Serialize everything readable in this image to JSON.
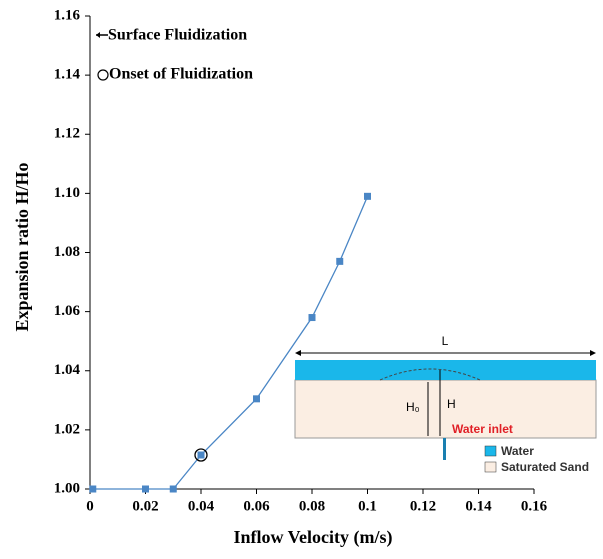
{
  "chart_data": {
    "type": "line",
    "x_label": "Inflow Velocity (m/s)",
    "y_label": "Expansion ratio H/Ho",
    "legend": [
      "Surface Fluidization",
      "Onset of Fluidization"
    ],
    "series": [
      {
        "x": [
          0.001,
          0.02,
          0.03,
          0.04,
          0.06,
          0.08,
          0.09,
          0.1
        ],
        "values": [
          1.0,
          1.0,
          1.0,
          1.0115,
          1.0305,
          1.058,
          1.077,
          1.099
        ],
        "color": "#4a86c5"
      }
    ],
    "onset_index": 3,
    "xlim": [
      0,
      0.16
    ],
    "xticks": [
      0,
      0.02,
      0.04,
      0.06,
      0.08,
      0.1,
      0.12,
      0.14,
      0.16
    ],
    "ylim": [
      1,
      1.16
    ],
    "yticks": [
      {
        "value": 1,
        "label": "1.00"
      },
      {
        "value": 1.02,
        "label": "1.02"
      },
      {
        "value": 1.04,
        "label": "1.04"
      },
      {
        "value": 1.06,
        "label": "1.06"
      },
      {
        "value": 1.08,
        "label": "1.08"
      },
      {
        "value": 1.1,
        "label": "1.10"
      },
      {
        "value": 1.12,
        "label": "1.12"
      },
      {
        "value": 1.14,
        "label": "1.14"
      },
      {
        "value": 1.16,
        "label": "1.16"
      }
    ],
    "inset": {
      "length_label": "L",
      "height_label": "H",
      "initial_height_label": "H₀",
      "inlet_label": "Water inlet",
      "legend": [
        "Water",
        "Saturated Sand"
      ]
    }
  }
}
